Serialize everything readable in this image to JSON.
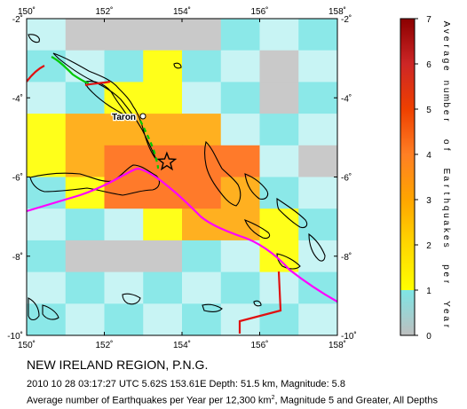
{
  "map": {
    "lon_ticks": [
      "150",
      "152",
      "154",
      "156",
      "158"
    ],
    "lat_ticks": [
      "-2",
      "-4",
      "-6",
      "-8",
      "-10"
    ],
    "bounds": {
      "lon_min": 150,
      "lon_max": 158,
      "lat_min": -10,
      "lat_max": -2
    },
    "place_label": "Taron",
    "epicenter": {
      "lon": 153.61,
      "lat": -5.62
    },
    "cell_size_deg": 1,
    "grid_rows_north_to_south": [
      [
        1,
        0,
        0,
        0,
        0,
        1,
        1,
        1
      ],
      [
        1,
        1,
        1,
        2,
        1,
        1,
        0,
        1
      ],
      [
        1,
        1,
        2,
        2,
        1,
        1,
        0,
        1
      ],
      [
        2,
        3,
        3,
        3,
        3,
        1,
        1,
        1
      ],
      [
        2,
        3,
        4,
        4,
        4,
        4,
        1,
        0
      ],
      [
        1,
        2,
        4,
        4,
        4,
        3,
        1,
        1
      ],
      [
        1,
        1,
        1,
        2,
        3,
        3,
        2,
        1
      ],
      [
        1,
        0,
        0,
        0,
        1,
        1,
        2,
        1
      ],
      [
        1,
        1,
        1,
        1,
        1,
        1,
        1,
        1
      ],
      [
        1,
        1,
        1,
        1,
        1,
        1,
        1,
        1
      ]
    ]
  },
  "colorbar": {
    "ticks": [
      "0",
      "1",
      "2",
      "3",
      "4",
      "5",
      "6",
      "7"
    ],
    "label_letters": [
      "A",
      "v",
      "e",
      "r",
      "a",
      "g",
      "e",
      "number",
      "of",
      "Earthquakes",
      "per",
      "Year"
    ],
    "stops": [
      {
        "value": 0,
        "color": "#bebebe"
      },
      {
        "value": 1,
        "color": "#7ee6e6"
      },
      {
        "value": 1,
        "color": "#ffff00"
      },
      {
        "value": 2,
        "color": "#ffd700"
      },
      {
        "value": 3,
        "color": "#ffa500"
      },
      {
        "value": 4,
        "color": "#ff7f24"
      },
      {
        "value": 5,
        "color": "#ee4000"
      },
      {
        "value": 6,
        "color": "#cd2626"
      },
      {
        "value": 7,
        "color": "#8b0000"
      }
    ]
  },
  "colors": {
    "bin_0": "#c9c9c9",
    "bin_1": "#c8f4f4",
    "bin_1b": "#8be8e8",
    "bin_2": "#ffff1a",
    "bin_3": "#ffb020",
    "bin_4": "#ff7a2a",
    "trench_magenta": "#ff00ff",
    "trench_green": "#00c800",
    "trench_red": "#e01010"
  },
  "caption": {
    "region": "NEW IRELAND REGION, P.N.G.",
    "event": "2010 10 28 03:17:27 UTC 5.62S 153.61E Depth: 51.5 km, Magnitude: 5.8",
    "footer_prefix": "Average number of Earthquakes per Year per 12,300 km",
    "footer_sup": "2",
    "footer_suffix": ", Magnitude 5 and Greater, All Depths"
  }
}
